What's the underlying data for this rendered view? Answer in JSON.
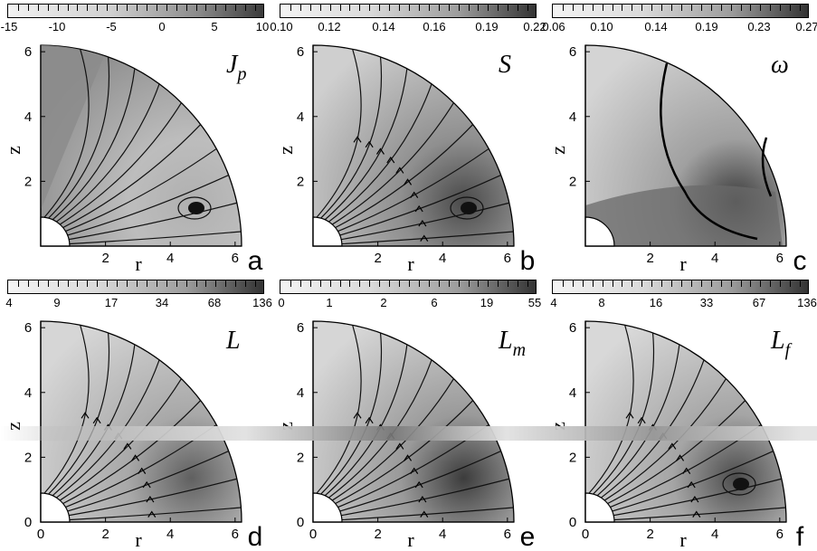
{
  "panels": [
    {
      "letter": "a",
      "var_main": "J",
      "var_sub": "p",
      "var_style": "italic",
      "scale_ticks": [
        "-15",
        "-10",
        "-5",
        "0",
        "5",
        "10"
      ],
      "x_ticks": [
        "2",
        "4",
        "6"
      ],
      "y_ticks": [
        "6",
        "4",
        "2"
      ],
      "xlabel": "r",
      "ylabel": "z"
    },
    {
      "letter": "b",
      "var_main": "S",
      "var_sub": "",
      "var_style": "italic",
      "scale_ticks": [
        "0.10",
        "0.12",
        "0.14",
        "0.16",
        "0.19",
        "0.22"
      ],
      "x_ticks": [
        "2",
        "4",
        "6"
      ],
      "y_ticks": [
        "6",
        "4",
        "2"
      ],
      "xlabel": "r",
      "ylabel": "z"
    },
    {
      "letter": "c",
      "var_main": "ω",
      "var_sub": "",
      "var_style": "normal",
      "scale_ticks": [
        "0.06",
        "0.10",
        "0.14",
        "0.19",
        "0.23",
        "0.27"
      ],
      "x_ticks": [
        "2",
        "4",
        "6"
      ],
      "y_ticks": [
        "6",
        "4",
        "2"
      ],
      "xlabel": "r",
      "ylabel": "z"
    },
    {
      "letter": "d",
      "var_main": "L",
      "var_sub": "",
      "var_style": "italic",
      "scale_ticks": [
        "4",
        "9",
        "17",
        "34",
        "68",
        "136"
      ],
      "x_ticks": [
        "0",
        "2",
        "4",
        "6"
      ],
      "y_ticks": [
        "6",
        "4",
        "2",
        "0"
      ],
      "xlabel": "r",
      "ylabel": "z"
    },
    {
      "letter": "e",
      "var_main": "L",
      "var_sub": "m",
      "var_style": "italic",
      "scale_ticks": [
        "0",
        "1",
        "2",
        "6",
        "19",
        "55"
      ],
      "x_ticks": [
        "0",
        "2",
        "4",
        "6"
      ],
      "y_ticks": [
        "6",
        "4",
        "2",
        "0"
      ],
      "xlabel": "r",
      "ylabel": "z"
    },
    {
      "letter": "f",
      "var_main": "L",
      "var_sub": "f",
      "var_style": "italic",
      "scale_ticks": [
        "4",
        "8",
        "16",
        "33",
        "67",
        "136"
      ],
      "x_ticks": [
        "0",
        "2",
        "4",
        "6"
      ],
      "y_ticks": [
        "6",
        "4",
        "2",
        "0"
      ],
      "xlabel": "r",
      "ylabel": "z"
    }
  ],
  "fill_colors": {
    "a": [
      "#8a8a8a",
      "#bdbdbd",
      "#b0b0b0"
    ],
    "b": [
      "#cfcfcf",
      "#8f8f8f",
      "#4a4a4a"
    ],
    "c": [
      "#d4d4d4",
      "#a0a0a0",
      "#3a3a3a"
    ],
    "d": [
      "#d6d6d6",
      "#a8a8a8",
      "#606060"
    ],
    "e": [
      "#d6d6d6",
      "#9a9a9a",
      "#3c3c3c"
    ],
    "f": [
      "#d8d8d8",
      "#a5a5a5",
      "#4c4c4c"
    ]
  }
}
